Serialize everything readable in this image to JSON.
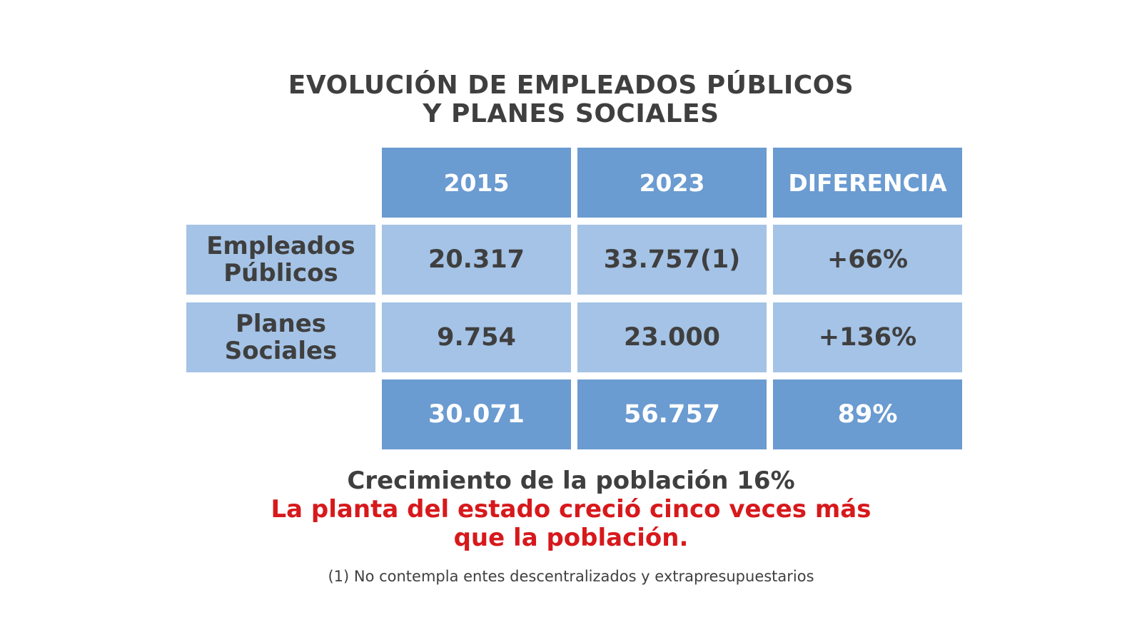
{
  "title": {
    "line1": "EVOLUCIÓN DE EMPLEADOS PÚBLICOS",
    "line2": "Y PLANES SOCIALES"
  },
  "colors": {
    "header_bg": "#6a9bd1",
    "cell_bg": "#a4c3e6",
    "text_dark": "#3f3f3f",
    "highlight_red": "#d7191c"
  },
  "chart_data": {
    "type": "table",
    "columns": [
      "2015",
      "2023",
      "DIFERENCIA"
    ],
    "rows": [
      {
        "label_line1": "Empleados",
        "label_line2": "Públicos",
        "values": [
          "20.317",
          "33.757(1)",
          "+66%"
        ]
      },
      {
        "label_line1": "Planes",
        "label_line2": "Sociales",
        "values": [
          "9.754",
          "23.000",
          "+136%"
        ]
      }
    ],
    "totals": [
      "30.071",
      "56.757",
      "89%"
    ]
  },
  "growth_text": "Crecimiento de la población 16%",
  "conclusion": {
    "line1": "La planta del estado creció cinco veces más",
    "line2": "que la población."
  },
  "footnote": "(1) No contempla entes descentralizados y extrapresupuestarios"
}
